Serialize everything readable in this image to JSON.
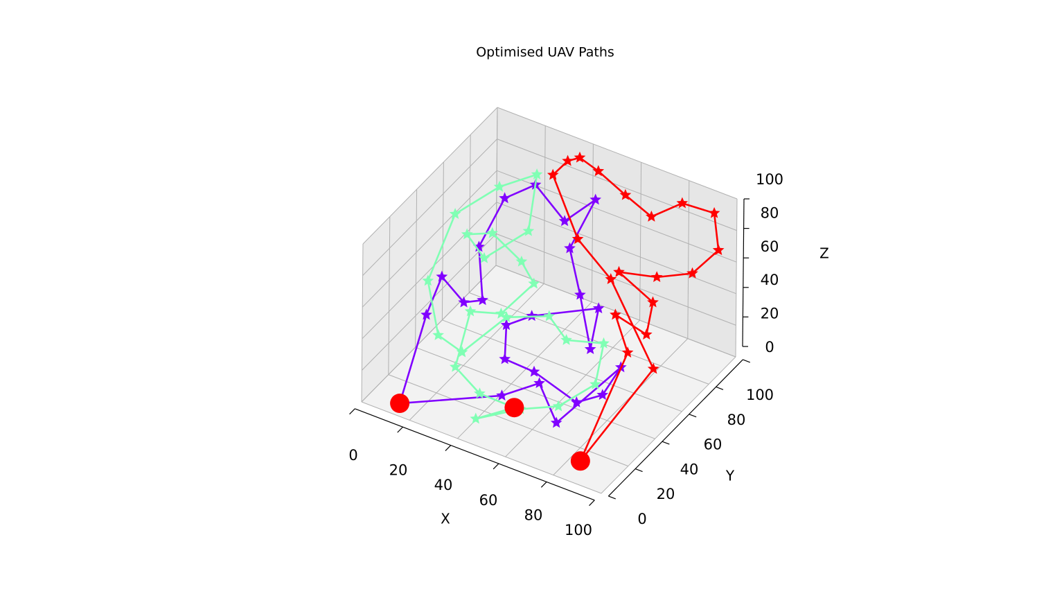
{
  "chart_data": {
    "type": "line3d",
    "title": "Optimised UAV Paths",
    "xlabel": "X",
    "ylabel": "Y",
    "zlabel": "Z",
    "xlim": [
      0,
      100
    ],
    "ylim": [
      0,
      100
    ],
    "zlim": [
      0,
      100
    ],
    "xticks": [
      0,
      20,
      40,
      60,
      80,
      100
    ],
    "yticks": [
      0,
      20,
      40,
      60,
      80,
      100
    ],
    "zticks": [
      0,
      20,
      40,
      60,
      80,
      100
    ],
    "grid": true,
    "series": [
      {
        "color": "#8000ff",
        "x": [
          12,
          10,
          8,
          20,
          25,
          15,
          20,
          30,
          45,
          55,
          50,
          60,
          70,
          65,
          40,
          35,
          40,
          55,
          70,
          78,
          80,
          70,
          60,
          50,
          12
        ],
        "y": [
          7,
          30,
          45,
          40,
          45,
          60,
          70,
          75,
          70,
          75,
          65,
          55,
          45,
          60,
          55,
          45,
          35,
          30,
          35,
          40,
          50,
          20,
          25,
          15,
          7
        ],
        "z": [
          0,
          35,
          45,
          40,
          40,
          55,
          80,
          90,
          80,
          95,
          70,
          55,
          35,
          45,
          30,
          30,
          20,
          25,
          10,
          15,
          25,
          10,
          25,
          20,
          0
        ]
      },
      {
        "color": "#80ffb4",
        "x": [
          48,
          42,
          55,
          68,
          75,
          70,
          60,
          50,
          35,
          25,
          15,
          5,
          5,
          15,
          25,
          30,
          20,
          10,
          15,
          30,
          38,
          30,
          20,
          25,
          38,
          48
        ],
        "y": [
          28,
          10,
          20,
          25,
          40,
          55,
          45,
          50,
          45,
          30,
          30,
          40,
          60,
          75,
          85,
          70,
          55,
          60,
          70,
          65,
          60,
          50,
          45,
          25,
          20,
          28
        ],
        "z": [
          0,
          5,
          10,
          15,
          20,
          30,
          35,
          40,
          35,
          20,
          25,
          45,
          70,
          80,
          85,
          65,
          55,
          60,
          55,
          50,
          45,
          30,
          30,
          15,
          10,
          0
        ]
      },
      {
        "color": "#ff0000",
        "x": [
          84,
          80,
          72,
          85,
          82,
          65,
          78,
          90,
          98,
          95,
          80,
          70,
          58,
          45,
          40,
          35,
          30,
          45,
          60,
          88,
          84
        ],
        "y": [
          13,
          55,
          60,
          60,
          70,
          75,
          80,
          85,
          90,
          92,
          95,
          90,
          92,
          95,
          90,
          90,
          88,
          80,
          78,
          60,
          13
        ],
        "z": [
          0,
          30,
          45,
          40,
          50,
          55,
          55,
          60,
          75,
          95,
          90,
          80,
          85,
          90,
          100,
          95,
          85,
          60,
          45,
          20,
          0
        ]
      }
    ],
    "depots": {
      "color": "#ff0000",
      "x": [
        12,
        48,
        84
      ],
      "y": [
        7,
        28,
        13
      ],
      "z": [
        0,
        0,
        0
      ]
    }
  }
}
